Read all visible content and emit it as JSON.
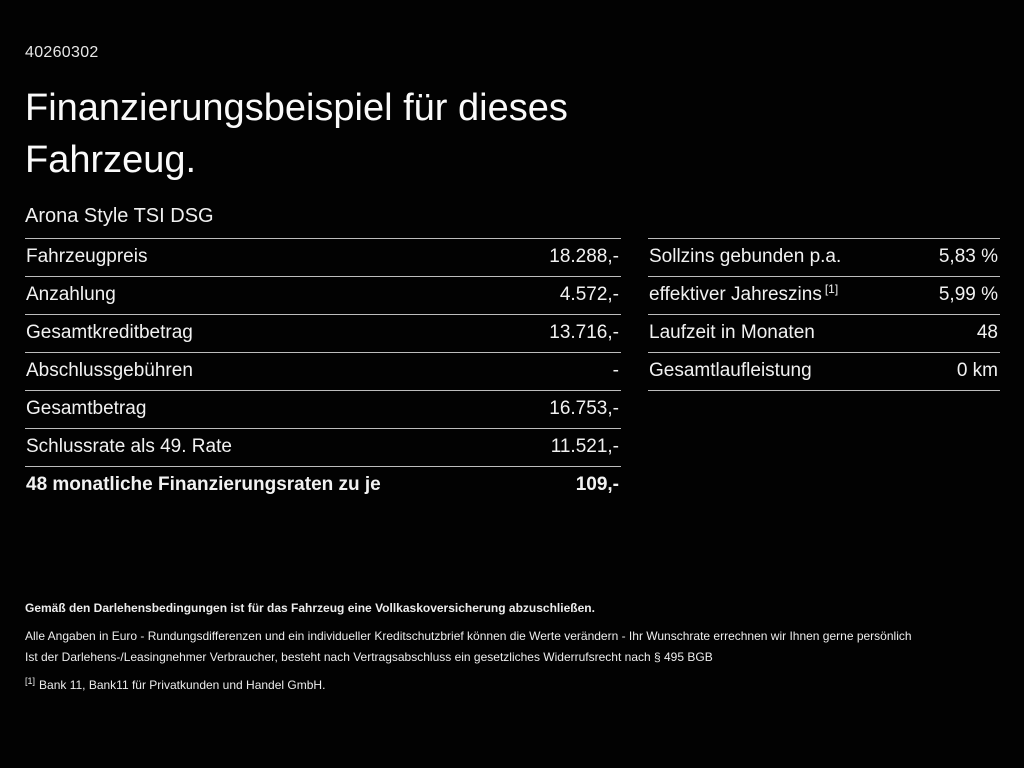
{
  "page": {
    "background": "#020202",
    "text_color": "#f2f2f2",
    "divider_color": "#bdbdbd"
  },
  "header": {
    "document_id": "40260302",
    "title": "Finanzierungsbeispiel für dieses Fahrzeug.",
    "vehicle_name": "Arona Style TSI DSG"
  },
  "financing_table": {
    "rows": [
      {
        "label": "Fahrzeugpreis",
        "value": "18.288,-"
      },
      {
        "label": "Anzahlung",
        "value": "4.572,-"
      },
      {
        "label": "Gesamtkreditbetrag",
        "value": "13.716,-"
      },
      {
        "label": "Abschlussgebühren",
        "value": "-"
      },
      {
        "label": "Gesamtbetrag",
        "value": "16.753,-"
      },
      {
        "label": "Schlussrate als 49. Rate",
        "value": "11.521,-"
      },
      {
        "label": "48 monatliche Finanzierungsraten zu je",
        "value": "109,-",
        "bold": true
      }
    ]
  },
  "conditions_table": {
    "rows": [
      {
        "label": "Sollzins gebunden p.a.",
        "value": "5,83 %"
      },
      {
        "label": "effektiver Jahreszins",
        "sup": "[1]",
        "value": "5,99 %"
      },
      {
        "label": "Laufzeit in Monaten",
        "value": "48"
      },
      {
        "label": "Gesamtlaufleistung",
        "value": "0 km"
      }
    ]
  },
  "footer": {
    "line1": "Gemäß den Darlehensbedingungen ist für das Fahrzeug eine Vollkaskoversicherung abzuschließen.",
    "line2": "Alle Angaben in Euro - Rundungsdifferenzen und ein individueller Kreditschutzbrief können die Werte verändern - Ihr Wunschrate errechnen wir Ihnen gerne persönlich",
    "line3": "Ist der Darlehens-/Leasingnehmer Verbraucher, besteht nach Vertragsabschluss ein gesetzliches Widerrufsrecht nach § 495 BGB",
    "footnote_marker": "[1]",
    "footnote": "Bank 11, Bank11 für Privatkunden und Handel GmbH."
  }
}
